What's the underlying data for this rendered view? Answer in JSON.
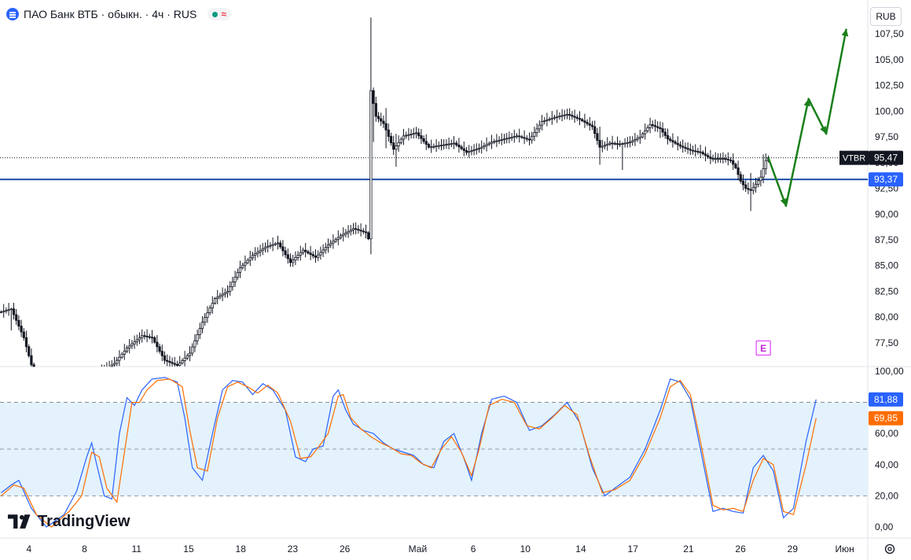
{
  "header": {
    "symbol_title": "ПАО Банк ВТБ · обыкн. · 4ч · RUS",
    "status_wave": "≈",
    "currency": "RUB"
  },
  "branding": {
    "logo_text": "TradingView"
  },
  "colors": {
    "up": "#131722",
    "down": "#131722",
    "hline": "#1e4fa8",
    "arrow": "#1a7f1a",
    "stoch_k": "#2962ff",
    "stoch_d": "#ff6d00",
    "band": "#e3f2fd",
    "price_label_bg": "#131722",
    "hline_label_bg": "#2962ff"
  },
  "chart_data": [
    {
      "type": "candlestick",
      "name": "price",
      "ylim": [
        75.2,
        110.8
      ],
      "yticks": [
        "107,50",
        "105,00",
        "102,50",
        "100,00",
        "97,50",
        "95,00",
        "92,50",
        "90,00",
        "87,50",
        "85,00",
        "82,50",
        "80,00",
        "77,50"
      ],
      "last_price": {
        "ticker": "VTBR",
        "value": "95,47",
        "raw": 95.47
      },
      "horizontal_line": {
        "value": "93,37",
        "raw": 93.37
      },
      "anchors": [
        [
          0,
          80.5
        ],
        [
          4,
          80.8
        ],
        [
          9,
          78.0
        ],
        [
          13,
          74.5
        ],
        [
          25,
          73.5
        ],
        [
          35,
          74.0
        ],
        [
          45,
          75.5
        ],
        [
          50,
          77.0
        ],
        [
          56,
          78.2
        ],
        [
          60,
          78.0
        ],
        [
          65,
          75.8
        ],
        [
          70,
          75.3
        ],
        [
          75,
          76.5
        ],
        [
          80,
          79.5
        ],
        [
          85,
          81.8
        ],
        [
          90,
          82.5
        ],
        [
          95,
          84.8
        ],
        [
          100,
          86.0
        ],
        [
          105,
          86.8
        ],
        [
          110,
          87.2
        ],
        [
          115,
          85.3
        ],
        [
          120,
          86.5
        ],
        [
          125,
          85.8
        ],
        [
          130,
          87.0
        ],
        [
          135,
          87.9
        ],
        [
          140,
          88.6
        ],
        [
          145,
          88.2
        ],
        [
          146,
          87.6
        ],
        [
          147,
          102.0
        ],
        [
          149,
          99.5
        ],
        [
          152,
          98.8
        ],
        [
          156,
          96.3
        ],
        [
          160,
          97.6
        ],
        [
          165,
          97.9
        ],
        [
          170,
          96.5
        ],
        [
          175,
          96.7
        ],
        [
          180,
          96.9
        ],
        [
          185,
          96.0
        ],
        [
          190,
          96.4
        ],
        [
          195,
          97.0
        ],
        [
          200,
          97.3
        ],
        [
          205,
          97.6
        ],
        [
          210,
          97.2
        ],
        [
          215,
          99.0
        ],
        [
          220,
          99.4
        ],
        [
          225,
          99.7
        ],
        [
          230,
          99.2
        ],
        [
          235,
          98.5
        ],
        [
          238,
          96.5
        ],
        [
          242,
          96.9
        ],
        [
          246,
          96.8
        ],
        [
          250,
          97.0
        ],
        [
          254,
          97.5
        ],
        [
          258,
          98.7
        ],
        [
          262,
          98.3
        ],
        [
          265,
          97.3
        ],
        [
          270,
          96.6
        ],
        [
          274,
          96.2
        ],
        [
          278,
          96.0
        ],
        [
          282,
          95.4
        ],
        [
          287,
          95.4
        ],
        [
          290,
          95.2
        ],
        [
          292,
          94.5
        ],
        [
          294,
          93.2
        ],
        [
          296,
          92.5
        ],
        [
          298,
          92.3
        ],
        [
          300,
          92.9
        ],
        [
          302,
          93.6
        ],
        [
          304,
          95.2
        ],
        [
          305,
          95.47
        ]
      ],
      "highlights": [
        [
          4,
          80.9,
          78.7
        ],
        [
          25,
          73.8,
          72.2
        ],
        [
          147,
          109.1,
          86.1
        ],
        [
          148,
          102.3,
          97.0
        ],
        [
          153,
          100.3,
          96.4
        ],
        [
          157,
          97.8,
          94.6
        ],
        [
          238,
          98.5,
          94.8
        ],
        [
          247,
          97.0,
          94.3
        ],
        [
          262,
          99.0,
          97.4
        ],
        [
          298,
          94.0,
          90.3
        ],
        [
          303,
          95.8,
          93.0
        ]
      ],
      "markers": {
        "earnings": "E",
        "earnings_bar": 303,
        "earnings_price": 77.0
      },
      "forecast_arrow": [
        [
          305,
          95.47
        ],
        [
          312,
          90.8
        ],
        [
          321,
          101.2
        ],
        [
          328,
          97.8
        ],
        [
          336,
          108.0
        ]
      ]
    },
    {
      "type": "line",
      "name": "stochastic",
      "ylim": [
        -7,
        103
      ],
      "yticks": [
        "100,00",
        "60,00",
        "40,00",
        "20,00",
        "0,00"
      ],
      "levels": [
        80,
        50,
        20
      ],
      "series": [
        {
          "key": "k",
          "label": "81,88",
          "raw": 81.88,
          "anchors": [
            [
              0,
              22
            ],
            [
              4,
              27
            ],
            [
              7,
              30
            ],
            [
              12,
              12
            ],
            [
              18,
              0
            ],
            [
              25,
              8
            ],
            [
              30,
              23
            ],
            [
              34,
              45
            ],
            [
              36,
              54
            ],
            [
              38,
              40
            ],
            [
              41,
              20
            ],
            [
              44,
              18
            ],
            [
              47,
              60
            ],
            [
              50,
              83
            ],
            [
              53,
              78
            ],
            [
              56,
              88
            ],
            [
              60,
              95
            ],
            [
              65,
              96
            ],
            [
              70,
              93
            ],
            [
              73,
              70
            ],
            [
              76,
              38
            ],
            [
              80,
              30
            ],
            [
              84,
              60
            ],
            [
              88,
              88
            ],
            [
              92,
              94
            ],
            [
              96,
              93
            ],
            [
              100,
              85
            ],
            [
              104,
              92
            ],
            [
              108,
              88
            ],
            [
              113,
              75
            ],
            [
              117,
              45
            ],
            [
              121,
              42
            ],
            [
              124,
              50
            ],
            [
              128,
              52
            ],
            [
              132,
              84
            ],
            [
              134,
              88
            ],
            [
              137,
              75
            ],
            [
              140,
              66
            ],
            [
              144,
              62
            ],
            [
              148,
              60
            ],
            [
              152,
              54
            ],
            [
              156,
              50
            ],
            [
              160,
              48
            ],
            [
              164,
              46
            ],
            [
              168,
              40
            ],
            [
              172,
              38
            ],
            [
              176,
              55
            ],
            [
              180,
              60
            ],
            [
              184,
              44
            ],
            [
              187,
              30
            ],
            [
              191,
              60
            ],
            [
              195,
              82
            ],
            [
              200,
              84
            ],
            [
              205,
              80
            ],
            [
              210,
              62
            ],
            [
              215,
              65
            ],
            [
              220,
              72
            ],
            [
              225,
              80
            ],
            [
              230,
              67
            ],
            [
              235,
              38
            ],
            [
              240,
              20
            ],
            [
              244,
              25
            ],
            [
              250,
              32
            ],
            [
              256,
              50
            ],
            [
              262,
              75
            ],
            [
              266,
              95
            ],
            [
              270,
              93
            ],
            [
              274,
              82
            ],
            [
              278,
              50
            ],
            [
              283,
              10
            ],
            [
              287,
              12
            ],
            [
              291,
              10
            ],
            [
              295,
              9
            ],
            [
              299,
              38
            ],
            [
              303,
              46
            ],
            [
              307,
              36
            ],
            [
              311,
              6
            ],
            [
              315,
              12
            ],
            [
              320,
              55
            ],
            [
              324,
              81.88
            ]
          ]
        },
        {
          "key": "d",
          "label": "69,85",
          "raw": 69.85,
          "anchors": [
            [
              0,
              20
            ],
            [
              5,
              27
            ],
            [
              9,
              25
            ],
            [
              14,
              8
            ],
            [
              20,
              0
            ],
            [
              27,
              10
            ],
            [
              32,
              20
            ],
            [
              36,
              48
            ],
            [
              39,
              45
            ],
            [
              42,
              25
            ],
            [
              46,
              16
            ],
            [
              49,
              48
            ],
            [
              52,
              80
            ],
            [
              55,
              80
            ],
            [
              58,
              88
            ],
            [
              62,
              94
            ],
            [
              67,
              95
            ],
            [
              72,
              90
            ],
            [
              75,
              62
            ],
            [
              78,
              38
            ],
            [
              82,
              36
            ],
            [
              86,
              70
            ],
            [
              90,
              90
            ],
            [
              94,
              93
            ],
            [
              98,
              90
            ],
            [
              102,
              86
            ],
            [
              106,
              91
            ],
            [
              110,
              86
            ],
            [
              115,
              68
            ],
            [
              119,
              44
            ],
            [
              123,
              45
            ],
            [
              126,
              51
            ],
            [
              130,
              60
            ],
            [
              134,
              84
            ],
            [
              136,
              85
            ],
            [
              139,
              70
            ],
            [
              143,
              63
            ],
            [
              147,
              58
            ],
            [
              151,
              54
            ],
            [
              155,
              51
            ],
            [
              159,
              47
            ],
            [
              163,
              46
            ],
            [
              167,
              41
            ],
            [
              171,
              38
            ],
            [
              175,
              50
            ],
            [
              179,
              58
            ],
            [
              183,
              48
            ],
            [
              187,
              33
            ],
            [
              190,
              50
            ],
            [
              194,
              78
            ],
            [
              199,
              82
            ],
            [
              204,
              80
            ],
            [
              209,
              65
            ],
            [
              214,
              63
            ],
            [
              219,
              70
            ],
            [
              224,
              78
            ],
            [
              229,
              72
            ],
            [
              234,
              45
            ],
            [
              239,
              22
            ],
            [
              244,
              24
            ],
            [
              250,
              30
            ],
            [
              256,
              47
            ],
            [
              262,
              70
            ],
            [
              266,
              90
            ],
            [
              270,
              94
            ],
            [
              274,
              85
            ],
            [
              278,
              55
            ],
            [
              283,
              14
            ],
            [
              287,
              11
            ],
            [
              291,
              12
            ],
            [
              295,
              10
            ],
            [
              299,
              30
            ],
            [
              303,
              44
            ],
            [
              307,
              40
            ],
            [
              311,
              10
            ],
            [
              315,
              8
            ],
            [
              320,
              40
            ],
            [
              324,
              69.85
            ]
          ]
        }
      ]
    }
  ],
  "time_axis": {
    "labels": [
      {
        "text": "4",
        "bar": 8
      },
      {
        "text": "8",
        "bar": 24
      },
      {
        "text": "11",
        "bar": 39
      },
      {
        "text": "15",
        "bar": 54
      },
      {
        "text": "18",
        "bar": 69
      },
      {
        "text": "23",
        "bar": 84
      },
      {
        "text": "26",
        "bar": 99
      },
      {
        "text": "Май",
        "bar": 120
      },
      {
        "text": "6",
        "bar": 136
      },
      {
        "text": "10",
        "bar": 151
      },
      {
        "text": "14",
        "bar": 167
      },
      {
        "text": "17",
        "bar": 182
      },
      {
        "text": "21",
        "bar": 198
      },
      {
        "text": "26",
        "bar": 213
      },
      {
        "text": "29",
        "bar": 228
      },
      {
        "text": "Июн",
        "bar": 243
      }
    ]
  }
}
